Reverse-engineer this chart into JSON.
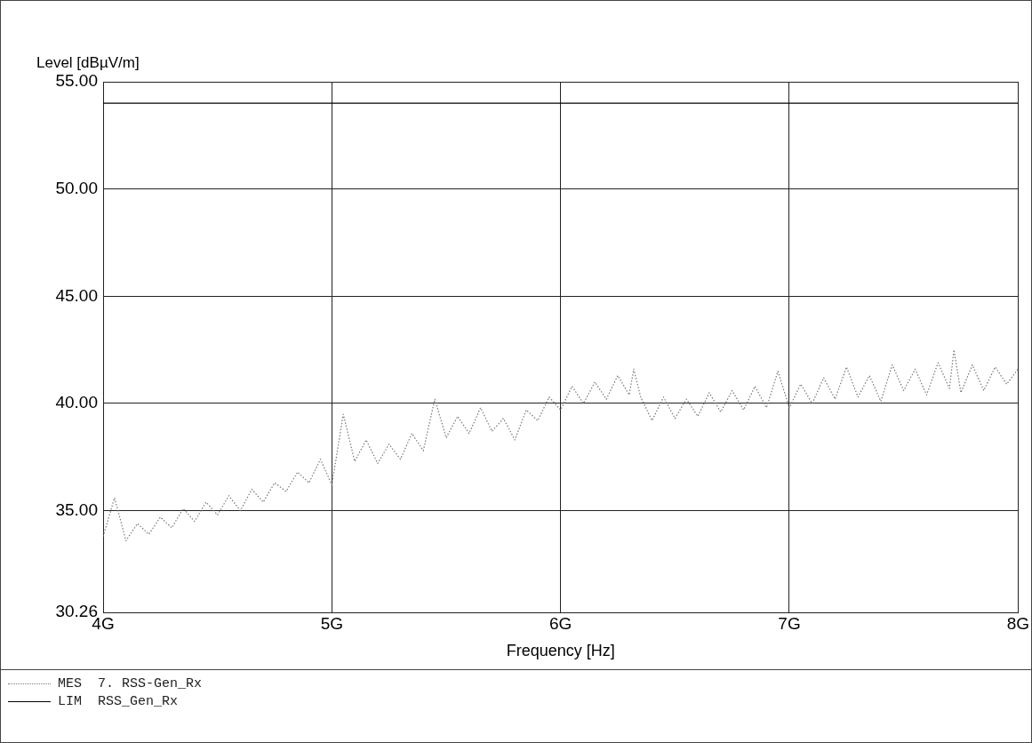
{
  "chart_data": {
    "type": "line",
    "xlabel": "Frequency [Hz]",
    "ylabel": "Level [dBµV/m]",
    "xlim": [
      4,
      8
    ],
    "xticks": [
      {
        "value": 4,
        "label": "4G"
      },
      {
        "value": 5,
        "label": "5G"
      },
      {
        "value": 6,
        "label": "6G"
      },
      {
        "value": 7,
        "label": "7G"
      },
      {
        "value": 8,
        "label": "8G"
      }
    ],
    "ylim": [
      30.26,
      55
    ],
    "yticks": [
      {
        "value": 30.26,
        "label": "30.26"
      },
      {
        "value": 35,
        "label": "35.00"
      },
      {
        "value": 40,
        "label": "40.00"
      },
      {
        "value": 45,
        "label": "45.00"
      },
      {
        "value": 50,
        "label": "50.00"
      },
      {
        "value": 55,
        "label": "55.00"
      }
    ],
    "grid": true,
    "legend": "bottom left",
    "marker": "none",
    "series": [
      {
        "name": "MES  7. RSS-Gen_Rx",
        "color": "#777777",
        "line_style": "dotted",
        "x": [
          4.0,
          4.05,
          4.1,
          4.15,
          4.2,
          4.25,
          4.3,
          4.35,
          4.4,
          4.45,
          4.5,
          4.55,
          4.6,
          4.65,
          4.7,
          4.75,
          4.8,
          4.85,
          4.9,
          4.95,
          5.0,
          5.05,
          5.1,
          5.15,
          5.2,
          5.25,
          5.3,
          5.35,
          5.4,
          5.45,
          5.5,
          5.55,
          5.6,
          5.65,
          5.7,
          5.75,
          5.8,
          5.85,
          5.9,
          5.95,
          6.0,
          6.05,
          6.1,
          6.15,
          6.2,
          6.25,
          6.3,
          6.32,
          6.35,
          6.4,
          6.45,
          6.5,
          6.55,
          6.6,
          6.65,
          6.7,
          6.75,
          6.8,
          6.85,
          6.9,
          6.95,
          7.0,
          7.05,
          7.1,
          7.15,
          7.2,
          7.25,
          7.3,
          7.35,
          7.4,
          7.45,
          7.5,
          7.55,
          7.6,
          7.65,
          7.7,
          7.72,
          7.75,
          7.8,
          7.85,
          7.9,
          7.95,
          8.0
        ],
        "values": [
          33.8,
          35.6,
          33.6,
          34.4,
          33.9,
          34.7,
          34.2,
          35.1,
          34.5,
          35.4,
          34.8,
          35.7,
          35.0,
          36.0,
          35.4,
          36.3,
          35.9,
          36.8,
          36.3,
          37.4,
          36.2,
          39.5,
          37.3,
          38.3,
          37.2,
          38.1,
          37.4,
          38.6,
          37.8,
          40.2,
          38.4,
          39.4,
          38.6,
          39.8,
          38.7,
          39.3,
          38.3,
          39.7,
          39.2,
          40.3,
          39.7,
          40.8,
          40.0,
          41.0,
          40.2,
          41.3,
          40.4,
          41.6,
          40.3,
          39.2,
          40.3,
          39.3,
          40.2,
          39.4,
          40.5,
          39.6,
          40.6,
          39.7,
          40.8,
          39.8,
          41.5,
          39.8,
          40.9,
          40.0,
          41.2,
          40.2,
          41.7,
          40.3,
          41.3,
          40.1,
          41.8,
          40.6,
          41.6,
          40.4,
          41.9,
          40.7,
          42.5,
          40.5,
          41.8,
          40.6,
          41.7,
          40.9,
          41.6
        ]
      },
      {
        "name": "LIM  RSS_Gen_Rx",
        "color": "#000000",
        "line_style": "solid",
        "x": [
          4,
          8
        ],
        "values": [
          54,
          54
        ]
      }
    ]
  }
}
